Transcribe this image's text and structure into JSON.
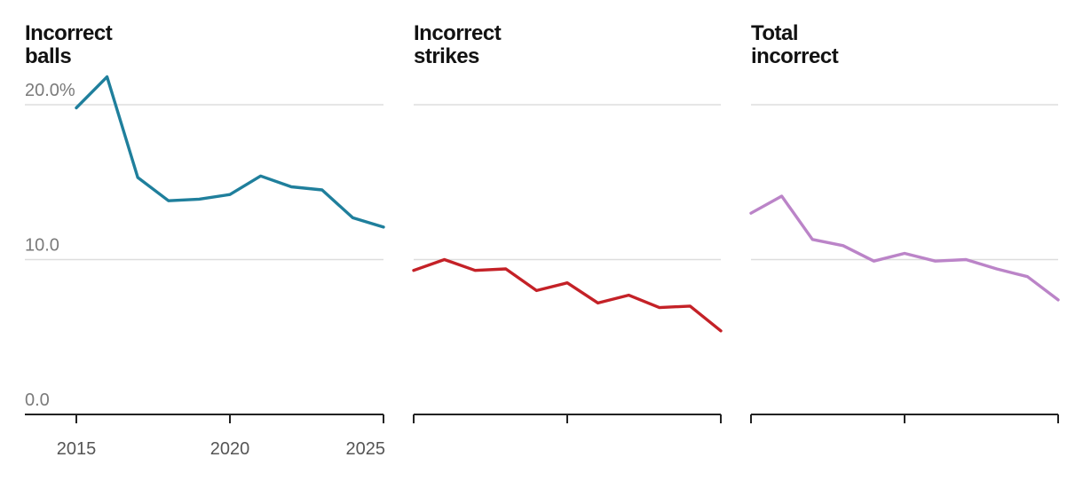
{
  "chart_data": {
    "type": "line",
    "x": [
      2015,
      2016,
      2017,
      2018,
      2019,
      2020,
      2021,
      2022,
      2023,
      2024,
      2025
    ],
    "ylim": [
      0,
      20
    ],
    "y_ticks": [
      {
        "value": 0,
        "label": "0.0"
      },
      {
        "value": 10,
        "label": "10.0"
      },
      {
        "value": 20,
        "label": "20.0%"
      }
    ],
    "x_ticks": [
      {
        "value": 2015,
        "label": "2015"
      },
      {
        "value": 2020,
        "label": "2020"
      },
      {
        "value": 2025,
        "label": "2025"
      }
    ],
    "panels": [
      {
        "title_lines": [
          "Incorrect",
          "balls"
        ],
        "color": "#1f7f9c",
        "values": [
          19.8,
          21.8,
          15.3,
          13.8,
          13.9,
          14.2,
          15.4,
          14.7,
          14.5,
          12.7,
          12.1
        ]
      },
      {
        "title_lines": [
          "Incorrect",
          "strikes"
        ],
        "color": "#c42127",
        "values": [
          9.3,
          10.0,
          9.3,
          9.4,
          8.0,
          8.5,
          7.2,
          7.7,
          6.9,
          7.0,
          5.4
        ]
      },
      {
        "title_lines": [
          "Total",
          "incorrect"
        ],
        "color": "#bb84c8",
        "values": [
          13.0,
          14.1,
          11.3,
          10.9,
          9.9,
          10.4,
          9.9,
          10.0,
          9.4,
          8.9,
          7.4
        ]
      }
    ]
  }
}
